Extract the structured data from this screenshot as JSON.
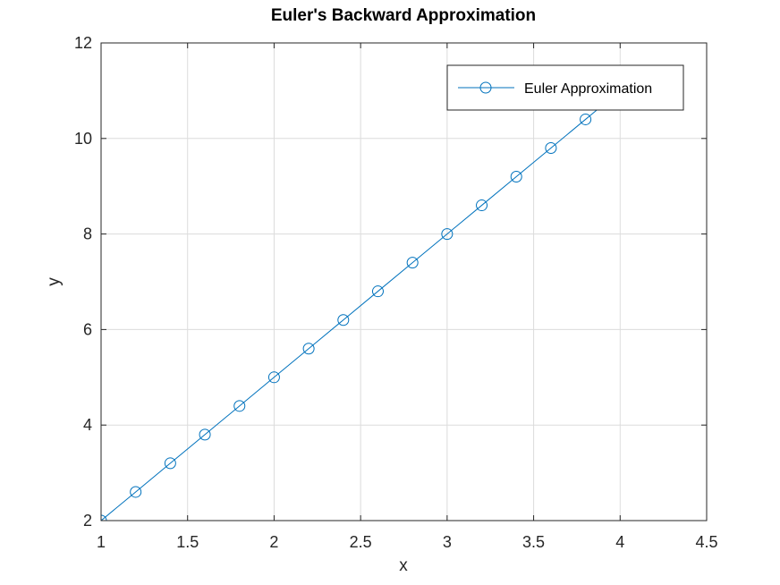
{
  "chart_data": {
    "type": "line",
    "title": "Euler's Backward Approximation",
    "xlabel": "x",
    "ylabel": "y",
    "xlim": [
      1,
      4.5
    ],
    "ylim": [
      2,
      12
    ],
    "xticks": [
      1,
      1.5,
      2,
      2.5,
      3,
      3.5,
      4,
      4.5
    ],
    "xtick_labels": [
      "1",
      "1.5",
      "2",
      "2.5",
      "3",
      "3.5",
      "4",
      "4.5"
    ],
    "yticks": [
      2,
      4,
      6,
      8,
      10,
      12
    ],
    "ytick_labels": [
      "2",
      "4",
      "6",
      "8",
      "10",
      "12"
    ],
    "grid": true,
    "legend_position": "top-right",
    "series": [
      {
        "name": "Euler Approximation",
        "color": "#0072BD",
        "marker": "circle",
        "x": [
          1.0,
          1.2,
          1.4,
          1.6,
          1.8,
          2.0,
          2.2,
          2.4,
          2.6,
          2.8,
          3.0,
          3.2,
          3.4,
          3.6,
          3.8,
          4.0
        ],
        "y": [
          2.0,
          2.6,
          3.2,
          3.8,
          4.4,
          5.0,
          5.6,
          6.2,
          6.8,
          7.4,
          8.0,
          8.6,
          9.2,
          9.8,
          10.4,
          11.0
        ]
      }
    ]
  }
}
